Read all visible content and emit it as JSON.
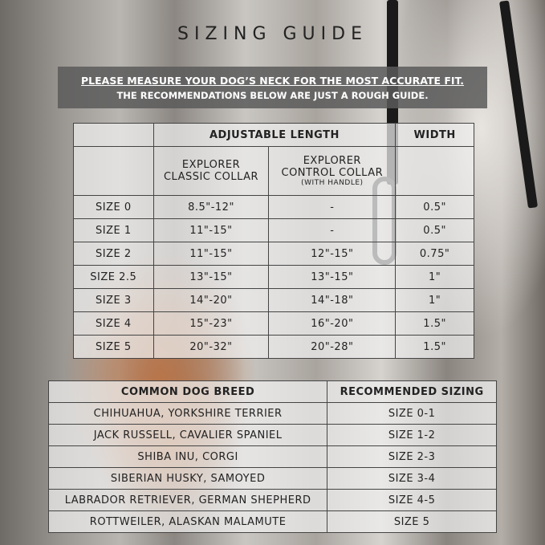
{
  "title": "SIZING GUIDE",
  "notice": {
    "line1": "PLEASE MEASURE YOUR DOG’S NECK FOR THE MOST ACCURATE FIT.",
    "line2": "THE RECOMMENDATIONS BELOW ARE JUST A ROUGH GUIDE."
  },
  "size_table": {
    "group_headers": {
      "length": "ADJUSTABLE LENGTH",
      "width": "WIDTH"
    },
    "columns": {
      "classic": "EXPLORER CLASSIC COLLAR",
      "control": "EXPLORER CONTROL COLLAR",
      "control_note": "(WITH HANDLE)"
    },
    "rows": [
      {
        "size": "SIZE 0",
        "classic": "8.5\"-12\"",
        "control": "-",
        "width": "0.5\""
      },
      {
        "size": "SIZE 1",
        "classic": "11\"-15\"",
        "control": "-",
        "width": "0.5\""
      },
      {
        "size": "SIZE 2",
        "classic": "11\"-15\"",
        "control": "12\"-15\"",
        "width": "0.75\""
      },
      {
        "size": "SIZE 2.5",
        "classic": "13\"-15\"",
        "control": "13\"-15\"",
        "width": "1\""
      },
      {
        "size": "SIZE 3",
        "classic": "14\"-20\"",
        "control": "14\"-18\"",
        "width": "1\""
      },
      {
        "size": "SIZE 4",
        "classic": "15\"-23\"",
        "control": "16\"-20\"",
        "width": "1.5\""
      },
      {
        "size": "SIZE 5",
        "classic": "20\"-32\"",
        "control": "20\"-28\"",
        "width": "1.5\""
      }
    ]
  },
  "breed_table": {
    "headers": {
      "breed": "COMMON DOG BREED",
      "sizing": "RECOMMENDED SIZING"
    },
    "rows": [
      {
        "breed": "CHIHUAHUA, YORKSHIRE TERRIER",
        "sizing": "SIZE 0-1"
      },
      {
        "breed": "JACK RUSSELL, CAVALIER SPANIEL",
        "sizing": "SIZE 1-2"
      },
      {
        "breed": "SHIBA INU, CORGI",
        "sizing": "SIZE 2-3"
      },
      {
        "breed": "SIBERIAN HUSKY, SAMOYED",
        "sizing": "SIZE 3-4"
      },
      {
        "breed": "LABRADOR RETRIEVER, GERMAN SHEPHERD",
        "sizing": "SIZE 4-5"
      },
      {
        "breed": "ROTTWEILER, ALASKAN MALAMUTE",
        "sizing": "SIZE 5"
      }
    ]
  }
}
